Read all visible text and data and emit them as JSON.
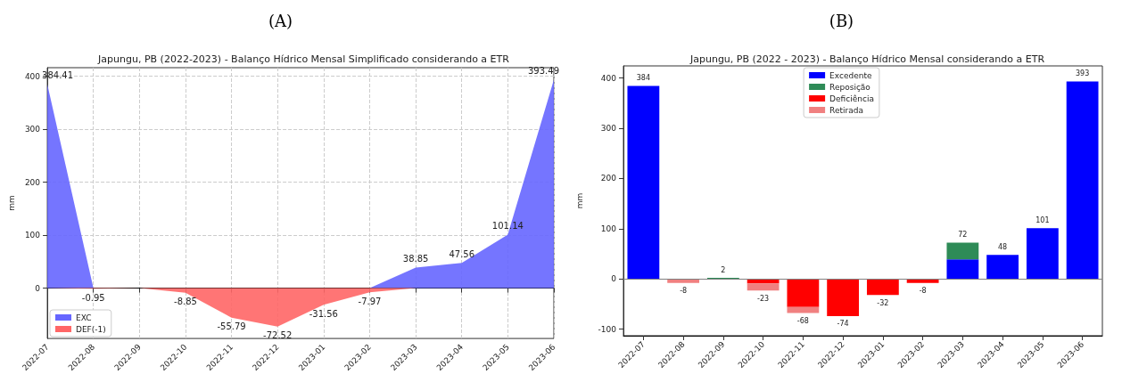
{
  "chart_data": [
    {
      "type": "area",
      "annotations": [
        "(A)"
      ],
      "title": "Japungu, PB (2022-2023) - Balanço Hídrico Mensal Simplificado considerando a ETR",
      "ylabel": "mm",
      "categories": [
        "2022-07",
        "2022-08",
        "2022-09",
        "2022-10",
        "2022-11",
        "2022-12",
        "2023-01",
        "2023-02",
        "2023-03",
        "2023-04",
        "2023-05",
        "2023-06"
      ],
      "series": [
        {
          "name": "EXC",
          "color": "#6666ff",
          "values": [
            384.41,
            0,
            0,
            0,
            0,
            0,
            0,
            0,
            38.85,
            47.56,
            101.14,
            393.49
          ],
          "value_labels": [
            "384.41",
            null,
            null,
            null,
            null,
            null,
            null,
            null,
            "38.85",
            "47.56",
            "101.14",
            "393.49"
          ]
        },
        {
          "name": "DEF(-1)",
          "color": "#ff6666",
          "values": [
            0,
            -0.95,
            0,
            -8.85,
            -55.79,
            -72.52,
            -31.56,
            -7.97,
            0,
            0,
            0,
            0
          ],
          "value_labels": [
            null,
            "-0.95",
            null,
            "-8.85",
            "-55.79",
            "-72.52",
            "-31.56",
            "-7.97",
            null,
            null,
            null,
            null
          ]
        }
      ],
      "ylim": [
        -95,
        416
      ],
      "yticks": [
        0,
        100,
        200,
        300,
        400
      ],
      "grid": true,
      "legend": "bottom left"
    },
    {
      "type": "bar",
      "annotations": [
        "(B)"
      ],
      "title": "Japungu, PB (2022 - 2023) - Balanço Hídrico Mensal considerando a ETR",
      "ylabel": "mm",
      "categories": [
        "2022-07",
        "2022-08",
        "2022-09",
        "2022-10",
        "2022-11",
        "2022-12",
        "2023-01",
        "2023-02",
        "2023-03",
        "2023-04",
        "2023-05",
        "2023-06"
      ],
      "stacked": true,
      "series": [
        {
          "name": "Excedente",
          "color": "#0000ff",
          "values": [
            384,
            null,
            null,
            null,
            null,
            null,
            null,
            null,
            39,
            48,
            101,
            393
          ]
        },
        {
          "name": "Reposição",
          "color": "#2e8b57",
          "values": [
            null,
            null,
            2,
            null,
            null,
            null,
            null,
            null,
            33,
            null,
            null,
            null
          ]
        },
        {
          "name": "Deficiência",
          "color": "#ff0000",
          "values": [
            null,
            null,
            null,
            -9,
            -56,
            -74,
            -32,
            -8,
            null,
            null,
            null,
            null
          ]
        },
        {
          "name": "Retirada",
          "color": "#f08080",
          "values": [
            null,
            -8,
            null,
            -14,
            -12,
            null,
            null,
            null,
            null,
            null,
            null,
            null
          ]
        }
      ],
      "totals": [
        "384",
        "-8",
        "2",
        "-23",
        "-68",
        "-74",
        "-32",
        "-8",
        "72",
        "48",
        "101",
        "393"
      ],
      "ylim": [
        -113,
        424
      ],
      "yticks": [
        -100,
        0,
        100,
        200,
        300,
        400
      ],
      "grid": false,
      "legend": "top",
      "ref_lines": [
        {
          "axis": "y",
          "value": 0,
          "color": "#808080"
        }
      ]
    }
  ]
}
